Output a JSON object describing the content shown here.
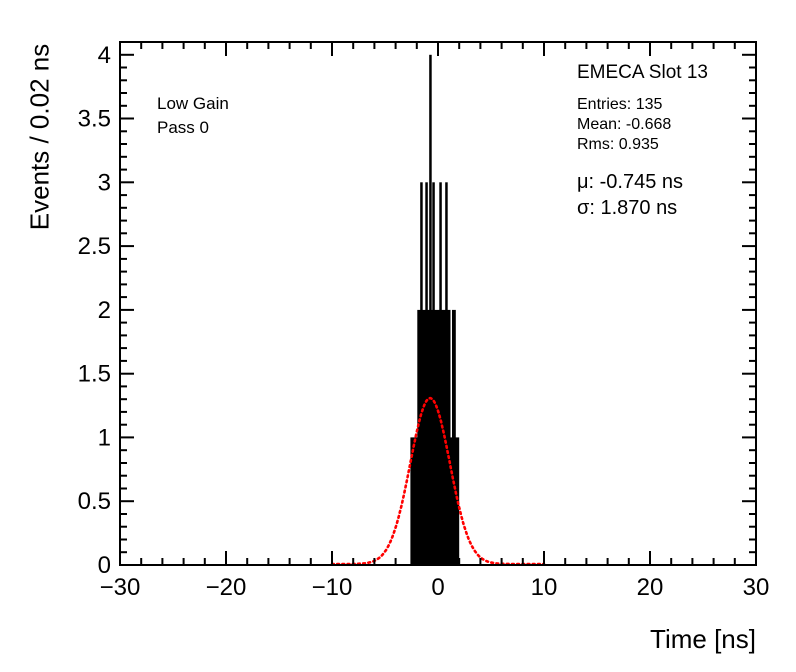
{
  "labels": {
    "gain": "Low Gain",
    "pass": "Pass 0",
    "detector": "EMECA Slot 13",
    "entries": "Entries: 135",
    "mean": "Mean: -0.668",
    "rms": "Rms: 0.935",
    "mu": "μ: -0.745 ns",
    "sigma": "σ: 1.870 ns"
  },
  "colors": {
    "histogram": "#000000",
    "fit_curve": "#ff0000",
    "axis": "#000000",
    "background": "#ffffff"
  },
  "chart_data": {
    "type": "bar",
    "title": "",
    "xlabel": "Time [ns]",
    "ylabel": "Events / 0.02 ns",
    "xlim": [
      -30,
      30
    ],
    "ylim": [
      0,
      4.1
    ],
    "x_ticks": [
      -30,
      -20,
      -10,
      0,
      10,
      20,
      30
    ],
    "x_minor_step": 2,
    "y_ticks": [
      0,
      0.5,
      1,
      1.5,
      2,
      2.5,
      3,
      3.5,
      4
    ],
    "y_minor_step": 0.1,
    "bin_width_ns": 0.02,
    "grid": false,
    "legend": "none",
    "stats": {
      "entries": 135,
      "mean": -0.668,
      "rms": 0.935
    },
    "fit": {
      "type": "gaussian",
      "amplitude": 1.3,
      "mu": -0.745,
      "sigma": 1.87,
      "range": [
        -10,
        10
      ],
      "style": "dotted",
      "color": "#ff0000"
    },
    "histogram_blocks": [
      {
        "x1": -2.6,
        "x2": 2.0,
        "h": 1
      },
      {
        "x1": -1.95,
        "x2": 1.18,
        "h": 2
      },
      {
        "x1": 1.32,
        "x2": 1.68,
        "h": 2
      }
    ],
    "histogram_spikes": [
      {
        "x": -1.56,
        "h": 3
      },
      {
        "x": -1.08,
        "h": 3
      },
      {
        "x": -0.71,
        "h": 4
      },
      {
        "x": -0.42,
        "h": 3
      },
      {
        "x": 0.24,
        "h": 3
      },
      {
        "x": 0.8,
        "h": 3
      }
    ]
  }
}
